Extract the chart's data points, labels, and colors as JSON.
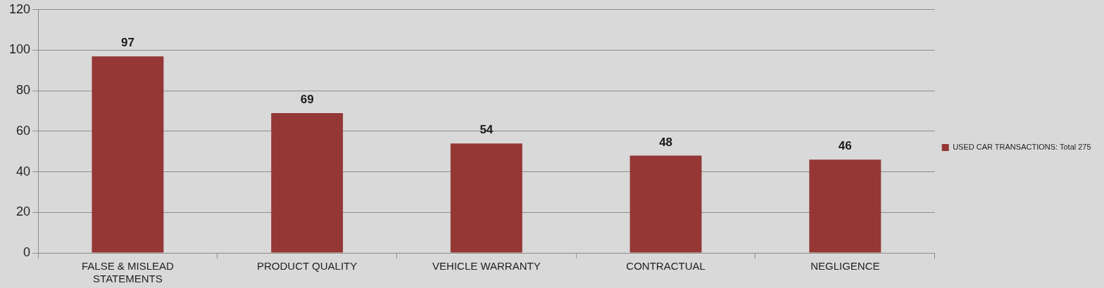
{
  "chart_data": {
    "type": "bar",
    "categories": [
      "FALSE & MISLEAD STATEMENTS",
      "PRODUCT QUALITY",
      "VEHICLE WARRANTY",
      "CONTRACTUAL",
      "NEGLIGENCE"
    ],
    "series": [
      {
        "name": "USED CAR TRANSACTIONS: Total 275",
        "color": "#953735",
        "values": [
          97,
          69,
          54,
          48,
          46
        ]
      }
    ],
    "ylim": [
      0,
      120
    ],
    "yticks": [
      0,
      20,
      40,
      60,
      80,
      100,
      120
    ],
    "grid": "y",
    "legend": "right",
    "data_labels": true
  }
}
